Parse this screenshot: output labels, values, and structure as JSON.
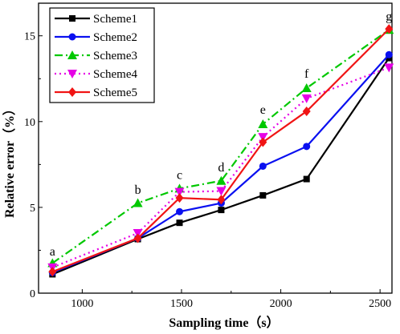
{
  "chart_data": {
    "type": "line",
    "xlabel": "Sampling time（s）",
    "ylabel": "Relative error（%）",
    "xlim": [
      780,
      2560
    ],
    "ylim": [
      0,
      16.9
    ],
    "xticks": [
      1000,
      1500,
      2000,
      2500
    ],
    "yticks": [
      0,
      5,
      10,
      15
    ],
    "grid": false,
    "legend_position": "top-left",
    "x": [
      850,
      1280,
      1490,
      1700,
      1910,
      2130,
      2545
    ],
    "series": [
      {
        "name": "Scheme1",
        "color": "#000000",
        "marker": "square",
        "dash": "solid",
        "values": [
          1.1,
          3.15,
          4.1,
          4.85,
          5.7,
          6.65,
          13.7
        ]
      },
      {
        "name": "Scheme2",
        "color": "#0a10f0",
        "marker": "circle",
        "dash": "solid",
        "values": [
          1.2,
          3.2,
          4.75,
          5.25,
          7.4,
          8.55,
          13.9
        ]
      },
      {
        "name": "Scheme3",
        "color": "#00c800",
        "marker": "triangle-up",
        "dash": "dashdot",
        "values": [
          1.75,
          5.25,
          6.1,
          6.55,
          9.85,
          11.95,
          15.35
        ]
      },
      {
        "name": "Scheme4",
        "color": "#e600e6",
        "marker": "triangle-down",
        "dash": "dot",
        "values": [
          1.5,
          3.5,
          5.9,
          5.95,
          9.1,
          11.35,
          13.15
        ]
      },
      {
        "name": "Scheme5",
        "color": "#f01414",
        "marker": "diamond",
        "dash": "solid",
        "values": [
          1.25,
          3.2,
          5.55,
          5.45,
          8.8,
          10.6,
          15.4
        ]
      }
    ],
    "annotations": [
      {
        "text": "a",
        "x": 850,
        "y": 2.2
      },
      {
        "text": "b",
        "x": 1280,
        "y": 5.8
      },
      {
        "text": "c",
        "x": 1490,
        "y": 6.65
      },
      {
        "text": "d",
        "x": 1700,
        "y": 7.1
      },
      {
        "text": "e",
        "x": 1910,
        "y": 10.45
      },
      {
        "text": "f",
        "x": 2130,
        "y": 12.55
      },
      {
        "text": "g",
        "x": 2545,
        "y": 15.9
      }
    ]
  }
}
